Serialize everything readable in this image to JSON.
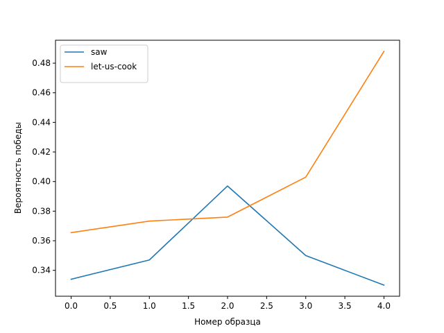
{
  "chart_data": {
    "type": "line",
    "title": "",
    "xlabel": "Номер образца",
    "ylabel": "Вероятность победы",
    "xlim": [
      -0.2,
      4.2
    ],
    "ylim": [
      0.3225,
      0.4955
    ],
    "x_ticks": [
      0.0,
      0.5,
      1.0,
      1.5,
      2.0,
      2.5,
      3.0,
      3.5,
      4.0
    ],
    "x_tick_labels": [
      "0.0",
      "0.5",
      "1.0",
      "1.5",
      "2.0",
      "2.5",
      "3.0",
      "3.5",
      "4.0"
    ],
    "y_ticks": [
      0.34,
      0.36,
      0.38,
      0.4,
      0.42,
      0.44,
      0.46,
      0.48
    ],
    "y_tick_labels": [
      "0.34",
      "0.36",
      "0.38",
      "0.40",
      "0.42",
      "0.44",
      "0.46",
      "0.48"
    ],
    "x": [
      0,
      1,
      2,
      3,
      4
    ],
    "series": [
      {
        "name": "saw",
        "color": "#1f77b4",
        "values": [
          0.334,
          0.347,
          0.397,
          0.35,
          0.33
        ]
      },
      {
        "name": "let-us-cook",
        "color": "#ff7f0e",
        "values": [
          0.3655,
          0.3733,
          0.376,
          0.403,
          0.488
        ]
      }
    ],
    "grid": false,
    "legend_position": "top-left"
  }
}
